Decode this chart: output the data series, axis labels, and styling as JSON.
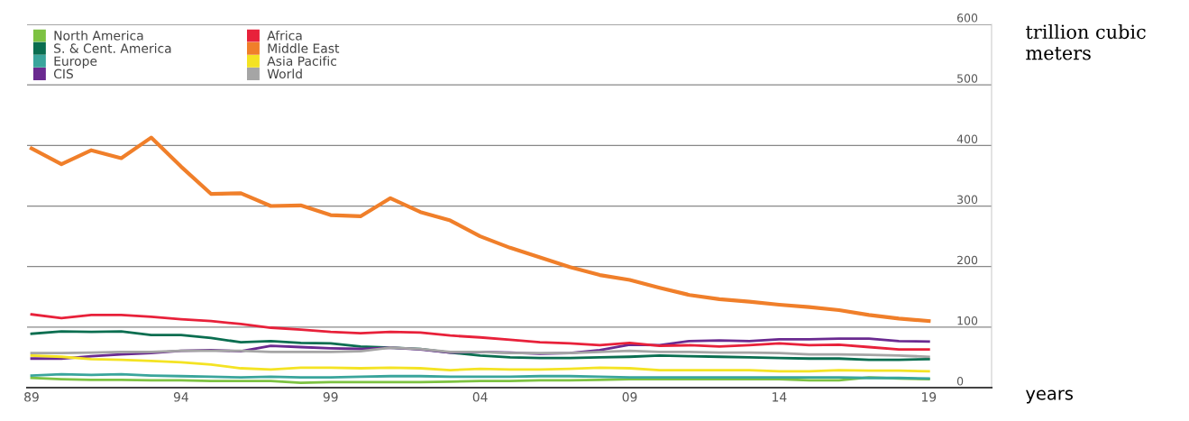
{
  "chart_data": {
    "type": "line",
    "xlabel": "years",
    "ylabel": "trillion cubic meters",
    "x": [
      1989,
      1990,
      1991,
      1992,
      1993,
      1994,
      1995,
      1996,
      1997,
      1998,
      1999,
      2000,
      2001,
      2002,
      2003,
      2004,
      2005,
      2006,
      2007,
      2008,
      2009,
      2010,
      2011,
      2012,
      2013,
      2014,
      2015,
      2016,
      2017,
      2018,
      2019
    ],
    "series": [
      {
        "name": "North America",
        "color": "#7dc242",
        "values": [
          16,
          14,
          13,
          13,
          12,
          12,
          11,
          11,
          11,
          8,
          9,
          9,
          9,
          9,
          10,
          11,
          11,
          12,
          12,
          13,
          14,
          14,
          14,
          14,
          14,
          14,
          12,
          12,
          17,
          15,
          14
        ]
      },
      {
        "name": "S. & Cent. America",
        "color": "#0a6e50",
        "values": [
          89,
          93,
          92,
          93,
          87,
          87,
          82,
          75,
          77,
          74,
          73,
          68,
          66,
          64,
          58,
          53,
          50,
          49,
          49,
          50,
          51,
          53,
          52,
          51,
          50,
          49,
          48,
          48,
          46,
          46,
          47
        ]
      },
      {
        "name": "Europe",
        "color": "#3aa59c",
        "values": [
          20,
          22,
          21,
          22,
          20,
          19,
          18,
          17,
          18,
          17,
          17,
          18,
          19,
          19,
          18,
          18,
          18,
          19,
          19,
          18,
          17,
          17,
          17,
          17,
          17,
          17,
          17,
          17,
          16,
          16,
          15
        ]
      },
      {
        "name": "CIS",
        "color": "#6a2a90",
        "values": [
          48,
          48,
          52,
          55,
          57,
          61,
          62,
          60,
          69,
          67,
          65,
          64,
          66,
          63,
          58,
          59,
          58,
          56,
          57,
          62,
          71,
          70,
          77,
          78,
          77,
          80,
          80,
          81,
          81,
          77,
          76
        ]
      },
      {
        "name": "Africa",
        "color": "#e8213a",
        "values": [
          121,
          115,
          120,
          120,
          117,
          113,
          110,
          105,
          99,
          96,
          92,
          90,
          92,
          91,
          86,
          83,
          79,
          75,
          73,
          70,
          74,
          69,
          70,
          68,
          70,
          73,
          70,
          71,
          67,
          63,
          63
        ]
      },
      {
        "name": "Middle East",
        "color": "#f07f2a",
        "values": [
          395,
          369,
          392,
          379,
          413,
          365,
          320,
          321,
          300,
          301,
          285,
          283,
          313,
          290,
          276,
          250,
          231,
          215,
          199,
          186,
          178,
          165,
          153,
          146,
          142,
          137,
          133,
          128,
          120,
          114,
          110
        ]
      },
      {
        "name": "Asia Pacific",
        "color": "#f4e323",
        "values": [
          53,
          51,
          47,
          46,
          44,
          42,
          38,
          32,
          30,
          33,
          33,
          32,
          33,
          32,
          29,
          31,
          30,
          30,
          31,
          33,
          32,
          29,
          29,
          29,
          29,
          27,
          27,
          29,
          28,
          28,
          27
        ]
      },
      {
        "name": "World",
        "color": "#a5a5a5",
        "values": [
          57,
          57,
          58,
          59,
          59,
          61,
          61,
          61,
          59,
          59,
          59,
          60,
          66,
          64,
          59,
          59,
          57,
          57,
          57,
          59,
          61,
          59,
          59,
          58,
          58,
          57,
          55,
          55,
          54,
          53,
          51
        ]
      }
    ],
    "xlim": [
      1988.85,
      2021.1
    ],
    "xticks": [
      {
        "value": 1989,
        "label": "89"
      },
      {
        "value": 1994,
        "label": "94"
      },
      {
        "value": 1999,
        "label": "99"
      },
      {
        "value": 2004,
        "label": "04"
      },
      {
        "value": 2009,
        "label": "09"
      },
      {
        "value": 2014,
        "label": "14"
      },
      {
        "value": 2019,
        "label": "19"
      }
    ],
    "ylim": [
      0,
      600
    ],
    "yticks": [
      0,
      100,
      200,
      300,
      400,
      500,
      600
    ],
    "grid": "y",
    "legend": "top left",
    "marker": "none",
    "line_style": "solid"
  }
}
